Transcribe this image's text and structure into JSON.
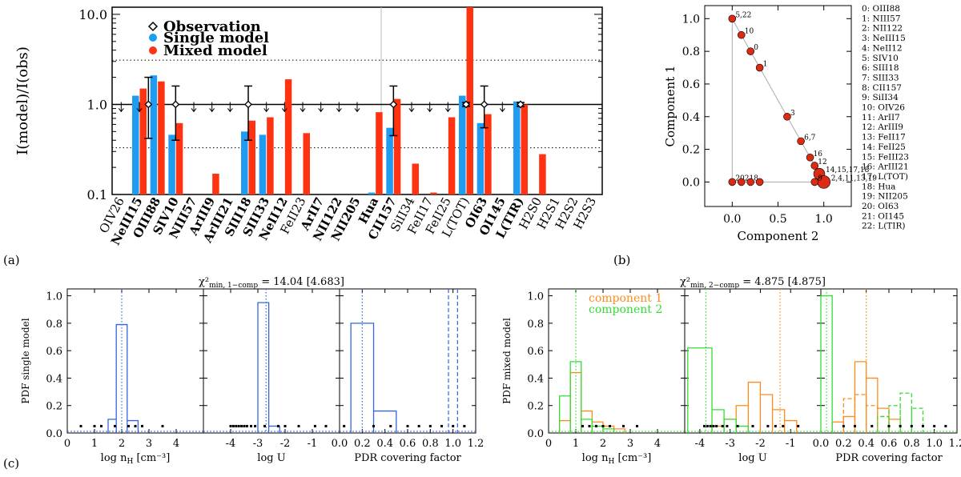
{
  "panel_labels": {
    "a": "(a)",
    "b": "(b)",
    "c": "(c)"
  },
  "colors": {
    "single": "#1f9bef",
    "mixed": "#ff3311",
    "comp1": "#ff8c1a",
    "comp2": "#33dd33",
    "hist_single": "#3366dd",
    "scatter": "#dd2a12"
  },
  "chart_data": [
    {
      "id": "a",
      "type": "bar",
      "title": "",
      "ylabel": "I(model)/I(obs)",
      "yscale": "log",
      "ylim": [
        0.1,
        12
      ],
      "ytick_labels": [
        "0.1",
        "1.0",
        "10.0"
      ],
      "legend": [
        "Observation",
        "Single model",
        "Mixed model"
      ],
      "reference_lines": {
        "solid": 1.0,
        "dotted": [
          0.33,
          3.1
        ]
      },
      "categories": [
        "OIV26",
        "NeIII15",
        "OIII88",
        "SIV10",
        "NIII57",
        "ArIII9",
        "ArIII21",
        "SIII18",
        "SIII33",
        "NeII12",
        "FeII23",
        "ArII7",
        "NII122",
        "NII205",
        "Hua",
        "CII157",
        "SiII34",
        "FeII17",
        "FeII25",
        "L(TOT)",
        "OI63",
        "OI145",
        "L(TIR)",
        "H2S0",
        "H2S1",
        "H2S2",
        "H2S3"
      ],
      "bold": [
        false,
        true,
        true,
        true,
        true,
        true,
        true,
        true,
        true,
        true,
        false,
        true,
        true,
        true,
        true,
        true,
        false,
        false,
        false,
        false,
        true,
        true,
        true,
        false,
        false,
        false,
        false
      ],
      "series": [
        {
          "name": "Single model",
          "values": [
            null,
            1.25,
            2.1,
            0.46,
            null,
            null,
            null,
            0.5,
            0.46,
            null,
            null,
            null,
            null,
            null,
            0.105,
            0.55,
            null,
            null,
            null,
            1.25,
            0.62,
            null,
            1.08,
            null,
            null,
            null,
            null
          ]
        },
        {
          "name": "Mixed model",
          "values": [
            null,
            1.5,
            1.8,
            0.62,
            null,
            0.17,
            null,
            0.66,
            0.72,
            1.9,
            0.48,
            null,
            null,
            null,
            0.82,
            1.15,
            0.22,
            0.105,
            0.72,
            12.0,
            0.78,
            null,
            1.0,
            0.28,
            null,
            null,
            null
          ]
        }
      ],
      "observation_points": [
        "NeIII15-OIII88",
        "SIV10",
        "SIII18",
        "CII157",
        "L(TOT)",
        "OI63",
        "L(TIR)"
      ],
      "upper_limits": [
        "OIV26",
        "NeIII15",
        "NIII57",
        "ArIII9",
        "ArIII21",
        "SIII33",
        "NeII12",
        "FeII23",
        "ArII7",
        "NII122",
        "NII205",
        "SiII34",
        "FeII17",
        "FeII25",
        "OI145"
      ]
    },
    {
      "id": "b",
      "type": "scatter",
      "xlabel": "Component 2",
      "ylabel": "Component 1",
      "xlim": [
        -0.3,
        1.3
      ],
      "ylim": [
        -0.15,
        1.08
      ],
      "xticks": [
        "0.0",
        "0.5",
        "1.0"
      ],
      "yticks": [
        "0.0",
        "0.2",
        "0.4",
        "0.6",
        "0.8",
        "1.0"
      ],
      "points": [
        {
          "x": 0.0,
          "y": 1.0,
          "label": "5,22"
        },
        {
          "x": 0.1,
          "y": 0.9,
          "label": "10"
        },
        {
          "x": 0.2,
          "y": 0.8,
          "label": "0"
        },
        {
          "x": 0.3,
          "y": 0.7,
          "label": "1"
        },
        {
          "x": 0.6,
          "y": 0.4,
          "label": "3"
        },
        {
          "x": 0.75,
          "y": 0.25,
          "label": "6,7"
        },
        {
          "x": 0.85,
          "y": 0.15,
          "label": "16"
        },
        {
          "x": 0.9,
          "y": 0.1,
          "label": "12"
        },
        {
          "x": 0.95,
          "y": 0.05,
          "label": "14,15,17,18"
        },
        {
          "x": 1.0,
          "y": 0.0,
          "label": "2,4,11,13,19"
        },
        {
          "x": 0.0,
          "y": 0.0,
          "label": "20"
        },
        {
          "x": 0.1,
          "y": 0.0,
          "label": "21"
        },
        {
          "x": 0.2,
          "y": 0.0,
          "label": "8"
        },
        {
          "x": 0.3,
          "y": 0.0,
          "label": ""
        },
        {
          "x": 0.9,
          "y": 0.0,
          "label": "9"
        }
      ],
      "legend_lines": [
        "0: OIII88",
        "1: NIII57",
        "2: NII122",
        "3: NeIII15",
        "4: NeII12",
        "5: SIV10",
        "6: SIII18",
        "7: SIII33",
        "8: CII157",
        "9: SiII34",
        "10: OIV26",
        "11:   ArII7",
        "12: ArIII9",
        "13: FeII17",
        "14: FeII25",
        "15: FeIII23",
        "16: ArIII21",
        "17: L(TOT)",
        "18:   Hua",
        "19: NII205",
        "20: OI63",
        "21: OI145",
        "22: L(TIR)"
      ]
    },
    {
      "id": "c-left",
      "type": "bar",
      "title_main": "χ²",
      "title_sub": "min, 1−comp",
      "title_value": " = 14.04 [4.683]",
      "ylabel": "PDF single model",
      "yticks": [
        "0.0",
        "0.2",
        "0.4",
        "0.6",
        "0.8",
        "1.0"
      ],
      "panels": [
        {
          "xlabel": "log n",
          "xlabel_sub": "H",
          "xlabel_unit": " [cm⁻³]",
          "xlim": [
            0,
            5
          ],
          "xticks": [
            "0",
            "1",
            "2",
            "3",
            "4"
          ],
          "steps": [
            {
              "x0": 1.5,
              "x1": 1.8,
              "y": 0.1
            },
            {
              "x0": 1.8,
              "x1": 2.2,
              "y": 0.79
            },
            {
              "x0": 2.2,
              "x1": 2.6,
              "y": 0.09
            }
          ],
          "vlines": [
            {
              "x": 2.0,
              "style": "dotted"
            }
          ],
          "dots": [
            0.5,
            1.0,
            1.25,
            1.75,
            2.25,
            2.5,
            2.75,
            3.5
          ]
        },
        {
          "xlabel": "log U",
          "xlim": [
            -5,
            0
          ],
          "xticks": [
            "-4",
            "-3",
            "-2",
            "-1"
          ],
          "steps": [
            {
              "x0": -3.0,
              "x1": -2.6,
              "y": 0.95
            },
            {
              "x0": -2.6,
              "x1": -2.2,
              "y": 0.05
            }
          ],
          "vlines": [
            {
              "x": -2.7,
              "style": "dotted"
            }
          ],
          "dots": [
            -4.0,
            -3.9,
            -3.8,
            -3.7,
            -3.6,
            -3.5,
            -3.4,
            -3.25,
            -3.1,
            -2.75,
            -2.25,
            -2.0,
            -1.5,
            -0.9,
            -0.5
          ]
        },
        {
          "xlabel": "PDR covering factor",
          "xlim": [
            0,
            1.2
          ],
          "xticks": [
            "0.0",
            "0.2",
            "0.4",
            "0.6",
            "0.8",
            "1.0",
            "1.2"
          ],
          "steps": [
            {
              "x0": 0.1,
              "x1": 0.3,
              "y": 0.8
            },
            {
              "x0": 0.3,
              "x1": 0.5,
              "y": 0.16
            }
          ],
          "vlines": [
            {
              "x": 0.2,
              "style": "dotted"
            },
            {
              "x": 0.96,
              "style": "dashed"
            },
            {
              "x": 1.04,
              "style": "dashed"
            }
          ],
          "dots": [
            0.04,
            0.3,
            0.45,
            0.6,
            0.7,
            0.8,
            0.9,
            1.0,
            1.1
          ]
        }
      ]
    },
    {
      "id": "c-right",
      "type": "bar",
      "title_main": "χ²",
      "title_sub": "min, 2−comp",
      "title_value": " = 4.875 [4.875]",
      "ylabel": "PDF mixed model",
      "yticks": [
        "0.0",
        "0.2",
        "0.4",
        "0.6",
        "0.8",
        "1.0"
      ],
      "legend": [
        "component 1",
        "component 2"
      ],
      "panels": [
        {
          "xlabel": "log n",
          "xlabel_sub": "H",
          "xlabel_unit": " [cm⁻³]",
          "xlim": [
            0,
            5
          ],
          "xticks": [
            "0",
            "1",
            "2",
            "3",
            "4"
          ],
          "series": [
            {
              "name": "component 1",
              "style": "solid",
              "steps": [
                {
                  "x0": 0.4,
                  "x1": 0.8,
                  "y": 0.09
                },
                {
                  "x0": 0.8,
                  "x1": 1.2,
                  "y": 0.44
                },
                {
                  "x0": 1.2,
                  "x1": 1.6,
                  "y": 0.16
                },
                {
                  "x0": 1.6,
                  "x1": 2.0,
                  "y": 0.08
                },
                {
                  "x0": 2.0,
                  "x1": 2.4,
                  "y": 0.05
                },
                {
                  "x0": 2.4,
                  "x1": 2.8,
                  "y": 0.03
                }
              ]
            },
            {
              "name": "component 2",
              "style": "solid",
              "steps": [
                {
                  "x0": 0.4,
                  "x1": 0.8,
                  "y": 0.27
                },
                {
                  "x0": 0.8,
                  "x1": 1.2,
                  "y": 0.52
                },
                {
                  "x0": 1.2,
                  "x1": 1.6,
                  "y": 0.1
                },
                {
                  "x0": 1.6,
                  "x1": 2.0,
                  "y": 0.05
                },
                {
                  "x0": 2.0,
                  "x1": 2.4,
                  "y": 0.03
                }
              ]
            }
          ],
          "vlines": [
            {
              "x": 1.0,
              "style": "dotted",
              "series": "component 2"
            }
          ],
          "dots": [
            1.25,
            1.5,
            1.75,
            2.0,
            2.25,
            2.75,
            3.25
          ]
        },
        {
          "xlabel": "log U",
          "xlim": [
            -4.5,
            0
          ],
          "xticks": [
            "-4",
            "-3",
            "-2",
            "-1"
          ],
          "series": [
            {
              "name": "component 1",
              "style": "solid",
              "steps": [
                {
                  "x0": -3.6,
                  "x1": -3.2,
                  "y": 0.05
                },
                {
                  "x0": -3.2,
                  "x1": -2.8,
                  "y": 0.1
                },
                {
                  "x0": -2.8,
                  "x1": -2.4,
                  "y": 0.2
                },
                {
                  "x0": -2.4,
                  "x1": -2.0,
                  "y": 0.37
                },
                {
                  "x0": -2.0,
                  "x1": -1.6,
                  "y": 0.28
                },
                {
                  "x0": -1.6,
                  "x1": -1.2,
                  "y": 0.17
                },
                {
                  "x0": -1.2,
                  "x1": -0.8,
                  "y": 0.09
                }
              ]
            },
            {
              "name": "component 2",
              "style": "solid",
              "steps": [
                {
                  "x0": -4.4,
                  "x1": -3.6,
                  "y": 0.62
                },
                {
                  "x0": -3.6,
                  "x1": -3.2,
                  "y": 0.17
                },
                {
                  "x0": -3.2,
                  "x1": -2.8,
                  "y": 0.1
                },
                {
                  "x0": -2.8,
                  "x1": -2.4,
                  "y": 0.05
                }
              ]
            }
          ],
          "vlines": [
            {
              "x": -3.8,
              "style": "dotted",
              "series": "component 2"
            },
            {
              "x": -1.35,
              "style": "dotted",
              "series": "component 1"
            }
          ],
          "dots": [
            -3.85,
            -3.75,
            -3.65,
            -3.55,
            -3.45,
            -3.25,
            -3.1,
            -2.75,
            -2.25,
            -1.75,
            -1.5,
            -1.25,
            -0.75
          ]
        },
        {
          "xlabel": "PDR covering factor",
          "xlim": [
            0,
            1.2
          ],
          "xticks": [
            "0.0",
            "0.2",
            "0.4",
            "0.6",
            "0.8",
            "1.0",
            "1.2"
          ],
          "series": [
            {
              "name": "component 1",
              "style": "solid",
              "steps": [
                {
                  "x0": 0.1,
                  "x1": 0.2,
                  "y": 0.08
                },
                {
                  "x0": 0.2,
                  "x1": 0.3,
                  "y": 0.12
                },
                {
                  "x0": 0.3,
                  "x1": 0.4,
                  "y": 0.52
                },
                {
                  "x0": 0.4,
                  "x1": 0.5,
                  "y": 0.4
                },
                {
                  "x0": 0.5,
                  "x1": 0.6,
                  "y": 0.18
                },
                {
                  "x0": 0.6,
                  "x1": 0.7,
                  "y": 0.1
                }
              ]
            },
            {
              "name": "component 2",
              "style": "solid",
              "steps": [
                {
                  "x0": 0.0,
                  "x1": 0.1,
                  "y": 1.0
                }
              ]
            },
            {
              "name": "component 1",
              "style": "dashed",
              "steps": [
                {
                  "x0": 0.2,
                  "x1": 0.3,
                  "y": 0.25
                },
                {
                  "x0": 0.3,
                  "x1": 0.4,
                  "y": 0.28
                },
                {
                  "x0": 0.4,
                  "x1": 0.5,
                  "y": 0.2
                },
                {
                  "x0": 0.5,
                  "x1": 0.6,
                  "y": 0.12
                }
              ]
            },
            {
              "name": "component 2",
              "style": "dashed",
              "steps": [
                {
                  "x0": 0.5,
                  "x1": 0.6,
                  "y": 0.12
                },
                {
                  "x0": 0.6,
                  "x1": 0.7,
                  "y": 0.2
                },
                {
                  "x0": 0.7,
                  "x1": 0.8,
                  "y": 0.29
                },
                {
                  "x0": 0.8,
                  "x1": 0.9,
                  "y": 0.18
                }
              ]
            }
          ],
          "vlines": [
            {
              "x": 0.05,
              "style": "dotted",
              "series": "component 2"
            },
            {
              "x": 0.4,
              "style": "dotted",
              "series": "component 1"
            }
          ],
          "dots": [
            0.2,
            0.3,
            0.45,
            0.6,
            0.7,
            0.8,
            0.9,
            1.0,
            1.1
          ]
        }
      ]
    }
  ]
}
